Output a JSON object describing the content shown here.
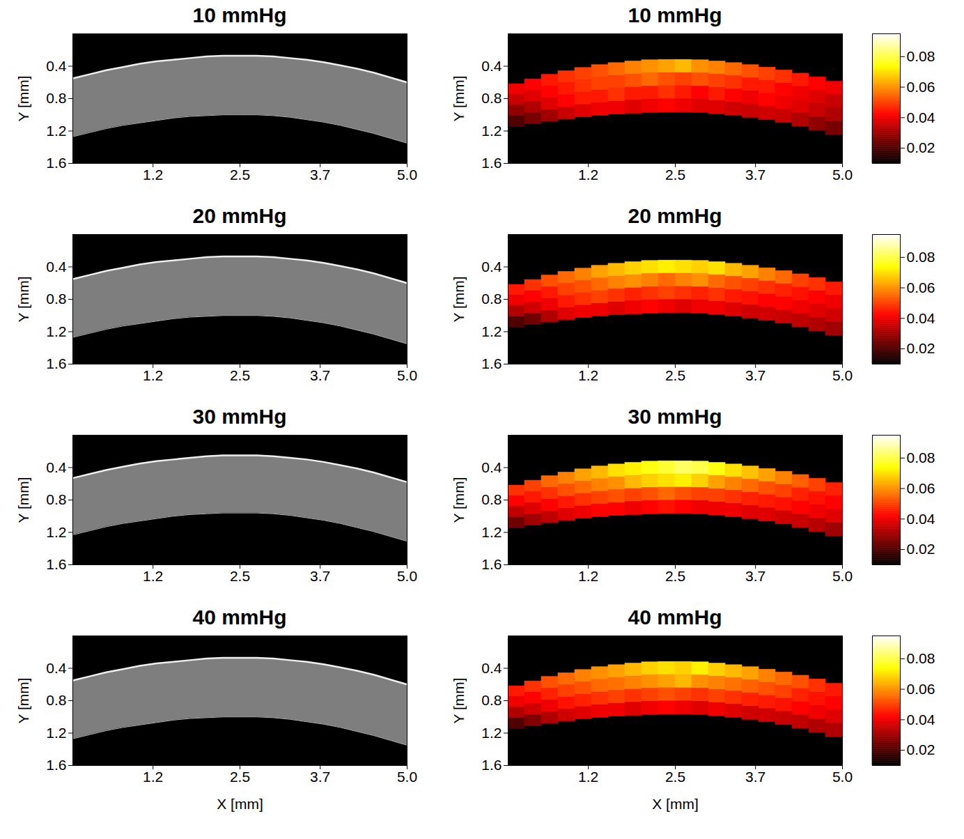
{
  "chart_data": [
    {
      "type": "area",
      "title": "10 mmHg",
      "y_label": "Y [mm]",
      "x": [
        0,
        0.25,
        0.5,
        0.75,
        1,
        1.25,
        1.5,
        1.75,
        2,
        2.25,
        2.5,
        2.75,
        3,
        3.25,
        3.5,
        3.75,
        4,
        4.25,
        4.5,
        4.75,
        5
      ],
      "anterior": [
        0.55,
        0.5,
        0.45,
        0.41,
        0.37,
        0.34,
        0.32,
        0.3,
        0.28,
        0.27,
        0.27,
        0.27,
        0.28,
        0.3,
        0.32,
        0.35,
        0.39,
        0.43,
        0.48,
        0.54,
        0.6
      ],
      "posterior": [
        1.27,
        1.22,
        1.17,
        1.13,
        1.1,
        1.07,
        1.04,
        1.02,
        1.01,
        1.0,
        1.0,
        1.0,
        1.01,
        1.03,
        1.06,
        1.09,
        1.13,
        1.18,
        1.23,
        1.29,
        1.35
      ],
      "xlim": [
        0,
        5
      ],
      "ylim": [
        1.6,
        0
      ],
      "xticks": [
        1.2,
        2.5,
        3.7,
        {
          "value": 5,
          "label": "5.0"
        }
      ],
      "yticks": [
        0.4,
        0.8,
        1.2,
        1.6
      ]
    },
    {
      "type": "heatmap",
      "title": "10 mmHg",
      "y_label": "Y [mm]",
      "x": [
        0,
        0.25,
        0.5,
        0.75,
        1,
        1.25,
        1.5,
        1.75,
        2,
        2.25,
        2.5,
        2.75,
        3,
        3.25,
        3.5,
        3.75,
        4,
        4.25,
        4.5,
        4.75,
        5
      ],
      "anterior": [
        0.65,
        0.59,
        0.53,
        0.48,
        0.44,
        0.4,
        0.37,
        0.35,
        0.33,
        0.32,
        0.32,
        0.32,
        0.33,
        0.35,
        0.37,
        0.4,
        0.43,
        0.47,
        0.51,
        0.56,
        0.62
      ],
      "posterior": [
        1.17,
        1.13,
        1.1,
        1.07,
        1.04,
        1.02,
        1.0,
        0.99,
        0.98,
        0.97,
        0.97,
        0.97,
        0.98,
        1.0,
        1.02,
        1.05,
        1.08,
        1.12,
        1.17,
        1.22,
        1.28
      ],
      "cells": [
        [
          0.04,
          0.042,
          0.045,
          0.048,
          0.05,
          0.052,
          0.055,
          0.058,
          0.06,
          0.062,
          0.065,
          0.06,
          0.058,
          0.055,
          0.052,
          0.05,
          0.048,
          0.045,
          0.042,
          0.04
        ],
        [
          0.035,
          0.038,
          0.042,
          0.045,
          0.048,
          0.05,
          0.05,
          0.052,
          0.055,
          0.052,
          0.05,
          0.052,
          0.05,
          0.048,
          0.045,
          0.045,
          0.042,
          0.04,
          0.038,
          0.035
        ],
        [
          0.028,
          0.032,
          0.038,
          0.042,
          0.045,
          0.045,
          0.048,
          0.045,
          0.045,
          0.048,
          0.045,
          0.042,
          0.045,
          0.042,
          0.04,
          0.042,
          0.04,
          0.038,
          0.035,
          0.032
        ],
        [
          0.02,
          0.025,
          0.03,
          0.035,
          0.038,
          0.04,
          0.04,
          0.038,
          0.04,
          0.042,
          0.04,
          0.038,
          0.038,
          0.036,
          0.035,
          0.036,
          0.035,
          0.032,
          0.028,
          0.025
        ]
      ],
      "colorbar": {
        "range": [
          0.01,
          0.095
        ],
        "ticks": [
          0.02,
          0.04,
          0.06,
          0.08
        ]
      },
      "xlim": [
        0,
        5
      ],
      "ylim": [
        1.6,
        0
      ],
      "xticks": [
        1.2,
        2.5,
        3.7,
        {
          "value": 5,
          "label": "5.0"
        }
      ],
      "yticks": [
        0.4,
        0.8,
        1.2,
        1.6
      ]
    },
    {
      "type": "area",
      "title": "20 mmHg",
      "y_label": "Y [mm]",
      "x": [
        0,
        0.25,
        0.5,
        0.75,
        1,
        1.25,
        1.5,
        1.75,
        2,
        2.25,
        2.5,
        2.75,
        3,
        3.25,
        3.5,
        3.75,
        4,
        4.25,
        4.5,
        4.75,
        5
      ],
      "anterior": [
        0.55,
        0.5,
        0.45,
        0.41,
        0.37,
        0.34,
        0.32,
        0.3,
        0.28,
        0.27,
        0.27,
        0.27,
        0.28,
        0.3,
        0.32,
        0.35,
        0.39,
        0.43,
        0.48,
        0.54,
        0.6
      ],
      "posterior": [
        1.27,
        1.22,
        1.17,
        1.13,
        1.1,
        1.07,
        1.04,
        1.02,
        1.01,
        1.0,
        1.0,
        1.0,
        1.01,
        1.03,
        1.06,
        1.09,
        1.13,
        1.18,
        1.23,
        1.29,
        1.35
      ],
      "xlim": [
        0,
        5
      ],
      "ylim": [
        1.6,
        0
      ],
      "xticks": [
        1.2,
        2.5,
        3.7,
        {
          "value": 5,
          "label": "5.0"
        }
      ],
      "yticks": [
        0.4,
        0.8,
        1.2,
        1.6
      ]
    },
    {
      "type": "heatmap",
      "title": "20 mmHg",
      "y_label": "Y [mm]",
      "x": [
        0,
        0.25,
        0.5,
        0.75,
        1,
        1.25,
        1.5,
        1.75,
        2,
        2.25,
        2.5,
        2.75,
        3,
        3.25,
        3.5,
        3.75,
        4,
        4.25,
        4.5,
        4.75,
        5
      ],
      "anterior": [
        0.65,
        0.59,
        0.53,
        0.48,
        0.44,
        0.4,
        0.37,
        0.35,
        0.33,
        0.32,
        0.32,
        0.32,
        0.33,
        0.35,
        0.37,
        0.4,
        0.43,
        0.47,
        0.51,
        0.56,
        0.62
      ],
      "posterior": [
        1.17,
        1.13,
        1.1,
        1.07,
        1.04,
        1.02,
        1.0,
        0.99,
        0.98,
        0.97,
        0.97,
        0.97,
        0.98,
        1.0,
        1.02,
        1.05,
        1.08,
        1.12,
        1.17,
        1.22,
        1.28
      ],
      "cells": [
        [
          0.045,
          0.048,
          0.052,
          0.055,
          0.058,
          0.062,
          0.065,
          0.068,
          0.07,
          0.072,
          0.07,
          0.068,
          0.07,
          0.065,
          0.062,
          0.058,
          0.055,
          0.05,
          0.048,
          0.045
        ],
        [
          0.04,
          0.042,
          0.045,
          0.05,
          0.052,
          0.055,
          0.058,
          0.06,
          0.058,
          0.055,
          0.058,
          0.06,
          0.055,
          0.052,
          0.05,
          0.048,
          0.046,
          0.044,
          0.042,
          0.04
        ],
        [
          0.032,
          0.036,
          0.04,
          0.045,
          0.048,
          0.05,
          0.048,
          0.046,
          0.048,
          0.05,
          0.048,
          0.046,
          0.048,
          0.045,
          0.044,
          0.042,
          0.042,
          0.04,
          0.038,
          0.036
        ],
        [
          0.02,
          0.024,
          0.032,
          0.038,
          0.04,
          0.04,
          0.038,
          0.04,
          0.042,
          0.04,
          0.038,
          0.04,
          0.04,
          0.038,
          0.036,
          0.036,
          0.035,
          0.034,
          0.032,
          0.03
        ]
      ],
      "colorbar": {
        "range": [
          0.01,
          0.095
        ],
        "ticks": [
          0.02,
          0.04,
          0.06,
          0.08
        ]
      },
      "xlim": [
        0,
        5
      ],
      "ylim": [
        1.6,
        0
      ],
      "xticks": [
        1.2,
        2.5,
        3.7,
        {
          "value": 5,
          "label": "5.0"
        }
      ],
      "yticks": [
        0.4,
        0.8,
        1.2,
        1.6
      ]
    },
    {
      "type": "area",
      "title": "30 mmHg",
      "y_label": "Y [mm]",
      "x": [
        0,
        0.25,
        0.5,
        0.75,
        1,
        1.25,
        1.5,
        1.75,
        2,
        2.25,
        2.5,
        2.75,
        3,
        3.25,
        3.5,
        3.75,
        4,
        4.25,
        4.5,
        4.75,
        5
      ],
      "anterior": [
        0.53,
        0.48,
        0.43,
        0.39,
        0.35,
        0.32,
        0.3,
        0.28,
        0.26,
        0.25,
        0.25,
        0.25,
        0.26,
        0.28,
        0.3,
        0.33,
        0.37,
        0.41,
        0.46,
        0.52,
        0.58
      ],
      "posterior": [
        1.23,
        1.18,
        1.13,
        1.09,
        1.06,
        1.03,
        1.0,
        0.98,
        0.97,
        0.96,
        0.96,
        0.96,
        0.97,
        0.99,
        1.02,
        1.05,
        1.09,
        1.14,
        1.19,
        1.25,
        1.31
      ],
      "xlim": [
        0,
        5
      ],
      "ylim": [
        1.6,
        0
      ],
      "xticks": [
        1.2,
        2.5,
        3.7,
        {
          "value": 5,
          "label": "5.0"
        }
      ],
      "yticks": [
        0.4,
        0.8,
        1.2,
        1.6
      ]
    },
    {
      "type": "heatmap",
      "title": "30 mmHg",
      "y_label": "Y [mm]",
      "x": [
        0,
        0.25,
        0.5,
        0.75,
        1,
        1.25,
        1.5,
        1.75,
        2,
        2.25,
        2.5,
        2.75,
        3,
        3.25,
        3.5,
        3.75,
        4,
        4.25,
        4.5,
        4.75,
        5
      ],
      "anterior": [
        0.65,
        0.59,
        0.53,
        0.48,
        0.44,
        0.4,
        0.37,
        0.35,
        0.33,
        0.32,
        0.32,
        0.32,
        0.33,
        0.35,
        0.37,
        0.4,
        0.43,
        0.47,
        0.51,
        0.56,
        0.62
      ],
      "posterior": [
        1.17,
        1.13,
        1.1,
        1.07,
        1.04,
        1.02,
        1.0,
        0.99,
        0.98,
        0.97,
        0.97,
        0.97,
        0.98,
        1.0,
        1.02,
        1.05,
        1.08,
        1.12,
        1.17,
        1.22,
        1.28
      ],
      "cells": [
        [
          0.048,
          0.05,
          0.055,
          0.058,
          0.062,
          0.065,
          0.07,
          0.072,
          0.075,
          0.078,
          0.082,
          0.08,
          0.075,
          0.07,
          0.066,
          0.062,
          0.058,
          0.054,
          0.05,
          0.046
        ],
        [
          0.042,
          0.045,
          0.048,
          0.052,
          0.055,
          0.058,
          0.06,
          0.065,
          0.068,
          0.07,
          0.072,
          0.068,
          0.062,
          0.058,
          0.055,
          0.052,
          0.05,
          0.046,
          0.044,
          0.042
        ],
        [
          0.034,
          0.038,
          0.042,
          0.045,
          0.048,
          0.05,
          0.052,
          0.05,
          0.052,
          0.055,
          0.052,
          0.05,
          0.05,
          0.048,
          0.046,
          0.045,
          0.044,
          0.042,
          0.04,
          0.038
        ],
        [
          0.024,
          0.03,
          0.034,
          0.038,
          0.04,
          0.042,
          0.042,
          0.04,
          0.042,
          0.044,
          0.042,
          0.04,
          0.04,
          0.04,
          0.038,
          0.038,
          0.036,
          0.035,
          0.033,
          0.03
        ]
      ],
      "colorbar": {
        "range": [
          0.01,
          0.095
        ],
        "ticks": [
          0.02,
          0.04,
          0.06,
          0.08
        ]
      },
      "xlim": [
        0,
        5
      ],
      "ylim": [
        1.6,
        0
      ],
      "xticks": [
        1.2,
        2.5,
        3.7,
        {
          "value": 5,
          "label": "5.0"
        }
      ],
      "yticks": [
        0.4,
        0.8,
        1.2,
        1.6
      ]
    },
    {
      "type": "area",
      "title": "40 mmHg",
      "y_label": "Y [mm]",
      "x_label": "X [mm]",
      "x": [
        0,
        0.25,
        0.5,
        0.75,
        1,
        1.25,
        1.5,
        1.75,
        2,
        2.25,
        2.5,
        2.75,
        3,
        3.25,
        3.5,
        3.75,
        4,
        4.25,
        4.5,
        4.75,
        5
      ],
      "anterior": [
        0.55,
        0.5,
        0.45,
        0.41,
        0.37,
        0.34,
        0.32,
        0.3,
        0.28,
        0.27,
        0.27,
        0.27,
        0.28,
        0.3,
        0.32,
        0.35,
        0.39,
        0.43,
        0.48,
        0.54,
        0.6
      ],
      "posterior": [
        1.27,
        1.22,
        1.17,
        1.13,
        1.1,
        1.07,
        1.04,
        1.02,
        1.01,
        1.0,
        1.0,
        1.0,
        1.01,
        1.03,
        1.06,
        1.09,
        1.13,
        1.18,
        1.23,
        1.29,
        1.35
      ],
      "xlim": [
        0,
        5
      ],
      "ylim": [
        1.6,
        0
      ],
      "xticks": [
        1.2,
        2.5,
        3.7,
        {
          "value": 5,
          "label": "5.0"
        }
      ],
      "yticks": [
        0.4,
        0.8,
        1.2,
        1.6
      ]
    },
    {
      "type": "heatmap",
      "title": "40 mmHg",
      "y_label": "Y [mm]",
      "x_label": "X [mm]",
      "x": [
        0,
        0.25,
        0.5,
        0.75,
        1,
        1.25,
        1.5,
        1.75,
        2,
        2.25,
        2.5,
        2.75,
        3,
        3.25,
        3.5,
        3.75,
        4,
        4.25,
        4.5,
        4.75,
        5
      ],
      "anterior": [
        0.65,
        0.59,
        0.53,
        0.48,
        0.44,
        0.4,
        0.37,
        0.35,
        0.33,
        0.32,
        0.32,
        0.32,
        0.33,
        0.35,
        0.37,
        0.4,
        0.43,
        0.47,
        0.51,
        0.56,
        0.62
      ],
      "posterior": [
        1.17,
        1.13,
        1.1,
        1.07,
        1.04,
        1.02,
        1.0,
        0.99,
        0.98,
        0.97,
        0.97,
        0.97,
        0.98,
        1.0,
        1.02,
        1.05,
        1.08,
        1.12,
        1.17,
        1.22,
        1.28
      ],
      "cells": [
        [
          0.045,
          0.048,
          0.052,
          0.055,
          0.058,
          0.06,
          0.062,
          0.065,
          0.068,
          0.07,
          0.068,
          0.072,
          0.068,
          0.065,
          0.062,
          0.058,
          0.055,
          0.052,
          0.048,
          0.045
        ],
        [
          0.04,
          0.042,
          0.046,
          0.05,
          0.052,
          0.055,
          0.056,
          0.058,
          0.06,
          0.062,
          0.065,
          0.06,
          0.058,
          0.056,
          0.054,
          0.052,
          0.05,
          0.046,
          0.044,
          0.042
        ],
        [
          0.032,
          0.036,
          0.04,
          0.044,
          0.046,
          0.048,
          0.05,
          0.048,
          0.05,
          0.052,
          0.05,
          0.048,
          0.05,
          0.048,
          0.046,
          0.045,
          0.044,
          0.042,
          0.04,
          0.038
        ],
        [
          0.02,
          0.026,
          0.032,
          0.036,
          0.038,
          0.04,
          0.04,
          0.038,
          0.04,
          0.042,
          0.04,
          0.038,
          0.04,
          0.038,
          0.036,
          0.036,
          0.035,
          0.034,
          0.032,
          0.032
        ]
      ],
      "colorbar": {
        "range": [
          0.01,
          0.095
        ],
        "ticks": [
          0.02,
          0.04,
          0.06,
          0.08
        ]
      },
      "xlim": [
        0,
        5
      ],
      "ylim": [
        1.6,
        0
      ],
      "xticks": [
        1.2,
        2.5,
        3.7,
        {
          "value": 5,
          "label": "5.0"
        }
      ],
      "yticks": [
        0.4,
        0.8,
        1.2,
        1.6
      ]
    }
  ]
}
